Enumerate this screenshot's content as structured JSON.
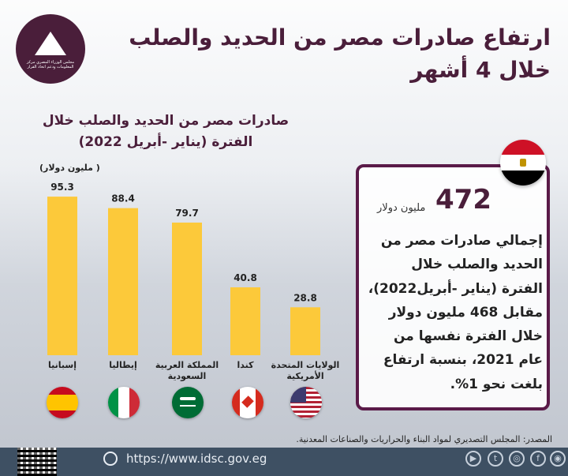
{
  "header": {
    "title_line1": "ارتفاع صادرات مصر من الحديد والصلب",
    "title_line2": "خلال 4 أشهر",
    "logo_text": "مجلس الوزراء المصري مركز المعلومات ودعم اتخاذ القرار"
  },
  "chart_data": {
    "type": "bar",
    "title_line1": "صادرات مصر من الحديد والصلب خلال",
    "title_line2": "الفترة (يناير -أبريل 2022)",
    "ylabel": "( مليون دولار)",
    "categories": [
      "إسبانيا",
      "إيطاليا",
      "المملكة العربية السعودية",
      "كندا",
      "الولايات المتحدة الأمريكية"
    ],
    "category_lines": [
      [
        "إسبانيا"
      ],
      [
        "إيطاليا"
      ],
      [
        "المملكة العربية",
        "السعودية"
      ],
      [
        "كندا"
      ],
      [
        "الولايات المتحدة",
        "الأمريكية"
      ]
    ],
    "values": [
      95.3,
      88.4,
      79.7,
      40.8,
      28.8
    ],
    "value_labels": [
      "95.3",
      "88.4",
      "79.7",
      "40.8",
      "28.8"
    ],
    "bar_color": "#fcc93a",
    "ylim": [
      0,
      100
    ],
    "grid": false
  },
  "summary": {
    "total_value": "472",
    "total_unit": "مليون دولار",
    "text": "إجمالي صادرات مصر من الحديد والصلب خلال الفترة (يناير -أبريل2022)، مقابل 468 مليون دولار خلال الفترة نفسها من عام 2021، بنسبة ارتفاع بلغت نحو 1%."
  },
  "footer": {
    "source": "المصدر: المجلس التصديري لمواد البناء والحراريات والصناعات المعدنية.",
    "url": "https://www.idsc.gov.eg",
    "social_icons": [
      "youtube-icon",
      "twitter-icon",
      "instagram-icon",
      "facebook-icon",
      "website-icon"
    ]
  },
  "colors": {
    "brand": "#4a1e3a",
    "card_border": "#5a1a48",
    "footer_bg": "#3e5063"
  }
}
